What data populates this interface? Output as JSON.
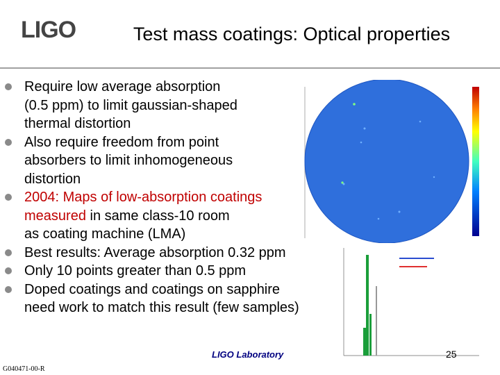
{
  "header": {
    "logo": "LIGO",
    "title": "Test mass coatings: Optical properties"
  },
  "bullets": [
    {
      "lines": [
        [
          {
            "text": "Require low average absorption"
          }
        ],
        [
          {
            "text": "(0.5 ppm) to limit gaussian-shaped"
          }
        ],
        [
          {
            "text": "thermal distortion"
          }
        ]
      ]
    },
    {
      "lines": [
        [
          {
            "text": "Also require freedom from point"
          }
        ],
        [
          {
            "text": "absorbers to limit inhomogeneous"
          }
        ],
        [
          {
            "text": "distortion"
          }
        ]
      ]
    },
    {
      "lines": [
        [
          {
            "text": "2004: Maps of low-absorption coatings",
            "color": "#c00000"
          }
        ],
        [
          {
            "text": "measured",
            "color": "#c00000"
          },
          {
            "text": " in same class-10 room"
          }
        ],
        [
          {
            "text": "as coating machine (LMA)"
          }
        ]
      ]
    },
    {
      "lines": [
        [
          {
            "text": "Best results: Average absorption 0.32 ppm"
          }
        ]
      ]
    },
    {
      "lines": [
        [
          {
            "text": "Only 10 points greater than 0.5 ppm"
          }
        ]
      ]
    },
    {
      "lines": [
        [
          {
            "text": "Doped coatings and coatings on sapphire"
          }
        ],
        [
          {
            "text": "need work to match this result (few samples)"
          }
        ]
      ]
    }
  ],
  "footer": {
    "lab": "LIGO Laboratory",
    "page": "25",
    "doc_id": "G040471-00-R"
  }
}
